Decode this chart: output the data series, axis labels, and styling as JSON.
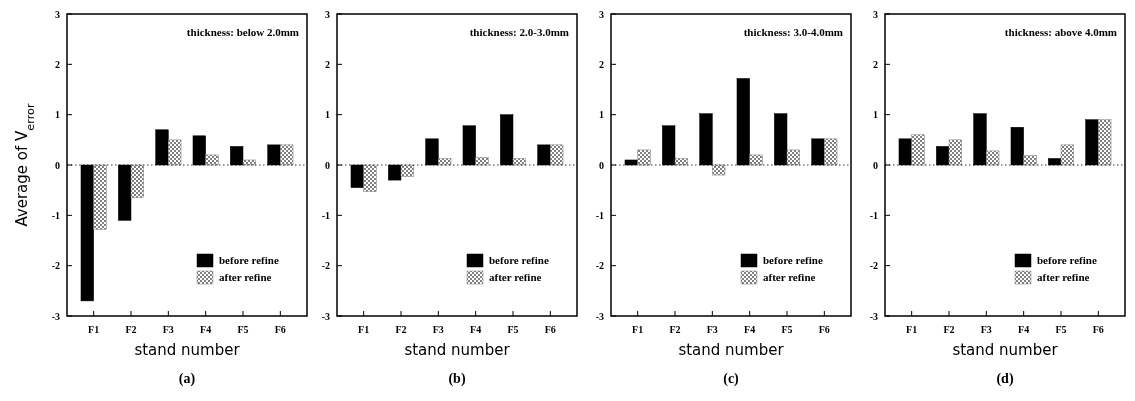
{
  "chart_data": [
    {
      "type": "bar",
      "title": "thickness: below 2.0mm",
      "xlabel": "stand number",
      "ylabel": "Average of V$_{error}$",
      "categories": [
        "F1",
        "F2",
        "F3",
        "F4",
        "F5",
        "F6"
      ],
      "series": [
        {
          "name": "before refine",
          "color": "#000000",
          "values": [
            -2.7,
            -1.1,
            0.7,
            0.58,
            0.37,
            0.4
          ]
        },
        {
          "name": "after refine",
          "color": "#808080",
          "values": [
            -1.28,
            -0.65,
            0.5,
            0.2,
            0.1,
            0.4
          ]
        }
      ],
      "ylim": [
        -3,
        3
      ],
      "yticks": [
        -3,
        -2,
        -1,
        0,
        1,
        2,
        3
      ],
      "legend": "bottom right",
      "ref_lines": [
        {
          "axis": "y",
          "value": 0,
          "line_style": "dotted"
        }
      ],
      "annotations": [
        "(a)"
      ]
    },
    {
      "type": "bar",
      "title": "thickness: 2.0-3.0mm",
      "xlabel": "stand number",
      "categories": [
        "F1",
        "F2",
        "F3",
        "F4",
        "F5",
        "F6"
      ],
      "series": [
        {
          "name": "before refine",
          "color": "#000000",
          "values": [
            -0.45,
            -0.3,
            0.52,
            0.78,
            1.0,
            0.4
          ]
        },
        {
          "name": "after refine",
          "color": "#808080",
          "values": [
            -0.53,
            -0.23,
            0.13,
            0.15,
            0.13,
            0.4
          ]
        }
      ],
      "ylim": [
        -3,
        3
      ],
      "yticks": [
        -3,
        -2,
        -1,
        0,
        1,
        2,
        3
      ],
      "legend": "bottom right",
      "ref_lines": [
        {
          "axis": "y",
          "value": 0,
          "line_style": "dotted"
        }
      ],
      "annotations": [
        "(b)"
      ]
    },
    {
      "type": "bar",
      "title": "thickness: 3.0-4.0mm",
      "xlabel": "stand number",
      "categories": [
        "F1",
        "F2",
        "F3",
        "F4",
        "F5",
        "F6"
      ],
      "series": [
        {
          "name": "before refine",
          "color": "#000000",
          "values": [
            0.1,
            0.78,
            1.02,
            1.72,
            1.02,
            0.52
          ]
        },
        {
          "name": "after refine",
          "color": "#808080",
          "values": [
            0.3,
            0.13,
            -0.2,
            0.2,
            0.3,
            0.52
          ]
        }
      ],
      "ylim": [
        -3,
        3
      ],
      "yticks": [
        -3,
        -2,
        -1,
        0,
        1,
        2,
        3
      ],
      "legend": "bottom right",
      "ref_lines": [
        {
          "axis": "y",
          "value": 0,
          "line_style": "dotted"
        }
      ],
      "annotations": [
        "(c)"
      ]
    },
    {
      "type": "bar",
      "title": "thickness: above 4.0mm",
      "xlabel": "stand number",
      "categories": [
        "F1",
        "F2",
        "F3",
        "F4",
        "F5",
        "F6"
      ],
      "series": [
        {
          "name": "before refine",
          "color": "#000000",
          "values": [
            0.52,
            0.37,
            1.02,
            0.75,
            0.13,
            0.9
          ]
        },
        {
          "name": "after refine",
          "color": "#808080",
          "values": [
            0.6,
            0.5,
            0.28,
            0.19,
            0.4,
            0.9
          ]
        }
      ],
      "ylim": [
        -3,
        3
      ],
      "yticks": [
        -3,
        -2,
        -1,
        0,
        1,
        2,
        3
      ],
      "legend": "bottom right",
      "ref_lines": [
        {
          "axis": "y",
          "value": 0,
          "line_style": "dotted"
        }
      ],
      "annotations": [
        "(d)"
      ]
    }
  ]
}
